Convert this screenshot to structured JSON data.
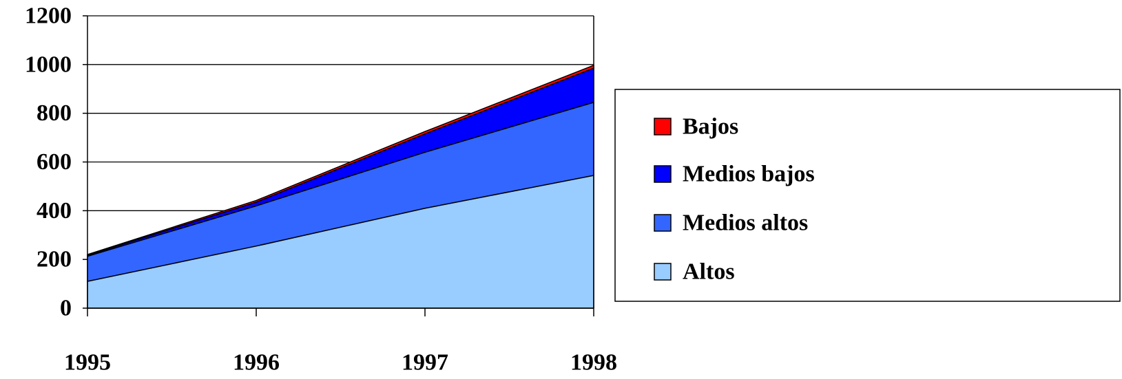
{
  "chart_data": {
    "type": "area",
    "stacked": true,
    "x": [
      "1995",
      "1996",
      "1997",
      "1998"
    ],
    "series": [
      {
        "name": "Altos",
        "color": "#99ccff",
        "values": [
          110,
          255,
          410,
          545
        ]
      },
      {
        "name": "Medios altos",
        "color": "#3366ff",
        "values": [
          103,
          165,
          230,
          300
        ]
      },
      {
        "name": "Medios bajos",
        "color": "#0000ff",
        "values": [
          4,
          15,
          75,
          140
        ]
      },
      {
        "name": "Bajos",
        "color": "#ff0000",
        "values": [
          3,
          7,
          10,
          12
        ]
      }
    ],
    "legend_order": [
      "Bajos",
      "Medios bajos",
      "Medios altos",
      "Altos"
    ],
    "ylim": [
      0,
      1200
    ],
    "yticks": [
      "0",
      "200",
      "400",
      "600",
      "800",
      "1000",
      "1200"
    ],
    "grid": true,
    "legend_position": "right"
  }
}
